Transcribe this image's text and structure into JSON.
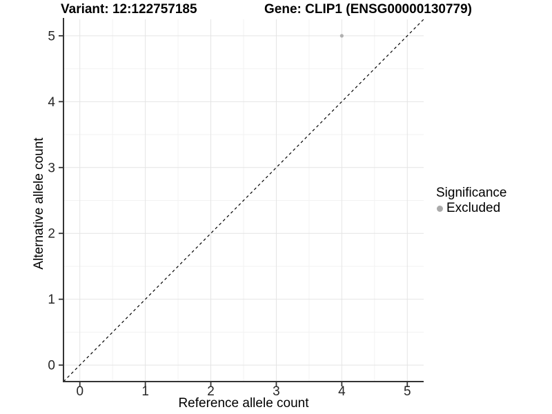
{
  "header": {
    "variant_title": "Variant: 12:122757185",
    "gene_title": "Gene: CLIP1 (ENSG00000130779)"
  },
  "legend": {
    "title": "Significance",
    "items": [
      {
        "label": "Excluded",
        "color": "#aaaaaa"
      }
    ]
  },
  "colors": {
    "major_grid": "#e4e4e4",
    "minor_grid": "#f2f2f2",
    "axis": "#333333",
    "tick_label": "#262626",
    "reference_line": "#000000",
    "point": "#b0b0b0"
  },
  "chart_data": {
    "type": "scatter",
    "title": "Variant: 12:122757185   Gene: CLIP1 (ENSG00000130779)",
    "xlabel": "Reference allele count",
    "ylabel": "Alternative allele count",
    "xlim": [
      -0.25,
      5.25
    ],
    "ylim": [
      -0.25,
      5.25
    ],
    "x_ticks": [
      0,
      1,
      2,
      3,
      4,
      5
    ],
    "y_ticks": [
      0,
      1,
      2,
      3,
      4,
      5
    ],
    "minor_step": 0.5,
    "grid": true,
    "legend_position": "right",
    "series": [
      {
        "name": "Excluded",
        "color": "#b0b0b0",
        "points": [
          {
            "x": 4,
            "y": 5
          }
        ]
      }
    ],
    "reference_line": {
      "type": "identity",
      "style": "dashed",
      "color": "#000000",
      "dash": "4,4"
    }
  }
}
